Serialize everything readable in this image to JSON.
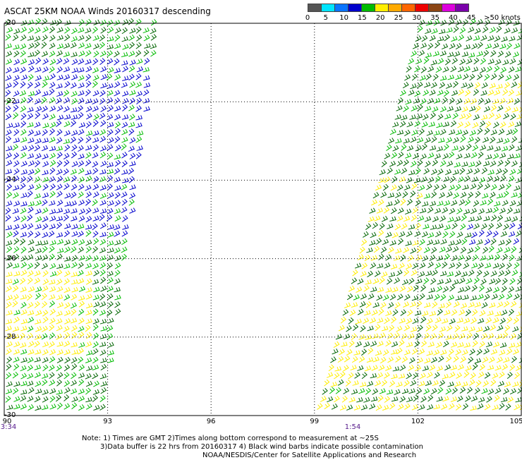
{
  "title": "ASCAT 25KM NOAA Winds 20160317 descending",
  "scale": {
    "colors": [
      "#555555",
      "#00e5ff",
      "#0a74ff",
      "#0000cc",
      "#00bb00",
      "#ffee00",
      "#ffaa00",
      "#ff6600",
      "#ee0000",
      "#8b4513",
      "#dd00dd",
      "#7a00aa"
    ],
    "labels": [
      "0",
      "5",
      "10",
      "15",
      "20",
      "25",
      "30",
      "35",
      "40",
      "45",
      ">50 knots"
    ]
  },
  "axes": {
    "y_labels": [
      "-20",
      "-22",
      "-24",
      "-26",
      "-28",
      "-30"
    ],
    "x_labels": [
      "90",
      "93",
      "96",
      "99",
      "102",
      "105"
    ],
    "time_labels": [
      "3:34",
      "1:54"
    ]
  },
  "notes": [
    "Note: 1) Times are GMT 2)Times along bottom correspond to measurement at ~25S",
    "3)Data buffer is 22 hrs from 20160317 4) Black wind barbs indicate possible contamination",
    "NOAA/NESDIS/Center for Satellite Applications and Research"
  ],
  "swaths": [
    {
      "name": "west swath",
      "lon_range_at_top": [
        90,
        94.4
      ],
      "lon_range_at_bottom": [
        90,
        92.8
      ]
    },
    {
      "name": "east swath",
      "lon_range_at_top": [
        102,
        105
      ],
      "lon_range_at_bottom": [
        99,
        105
      ]
    }
  ],
  "wind_colors": {
    "dark_green": "#006400",
    "green": "#00bb00",
    "blue": "#0000cc",
    "yellow": "#ffee00"
  }
}
